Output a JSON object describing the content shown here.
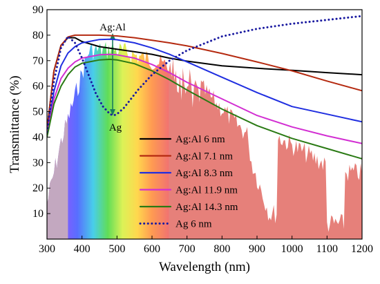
{
  "chart_data": {
    "type": "line",
    "xlabel": "Wavelength (nm)",
    "ylabel": "Transmittance (%)",
    "xlim": [
      300,
      1200
    ],
    "ylim": [
      0,
      90
    ],
    "xticks": [
      300,
      400,
      500,
      600,
      700,
      800,
      900,
      1000,
      1100,
      1200
    ],
    "yticks": [
      10,
      20,
      30,
      40,
      50,
      60,
      70,
      80,
      90
    ],
    "grid": false,
    "legend_position": "lower-center",
    "annotations": [
      {
        "text": "Ag:Al",
        "x": 490,
        "y": 82
      },
      {
        "text": "Ag",
        "x": 490,
        "y": 44
      }
    ],
    "background": "solar spectrum with visible-light rainbow band",
    "series": [
      {
        "name": "Ag:Al 6 nm",
        "color": "#000000",
        "style": "solid",
        "x": [
          300,
          320,
          340,
          360,
          380,
          400,
          450,
          500,
          550,
          600,
          650,
          700,
          800,
          900,
          1000,
          1100,
          1200
        ],
        "y": [
          43,
          66,
          76,
          79,
          79,
          77.5,
          75.5,
          74.5,
          73.5,
          72.5,
          71,
          69.8,
          68,
          67,
          66.2,
          65.3,
          64.5
        ]
      },
      {
        "name": "Ag:Al 7.1 nm",
        "color": "#b52a10",
        "style": "solid",
        "x": [
          300,
          320,
          340,
          360,
          380,
          400,
          450,
          500,
          550,
          600,
          650,
          700,
          800,
          900,
          1000,
          1100,
          1200
        ],
        "y": [
          43,
          66,
          76,
          79.3,
          80,
          80,
          80,
          79.7,
          79,
          78,
          77,
          75.8,
          72.8,
          69.5,
          66,
          62,
          58.2
        ]
      },
      {
        "name": "Ag:Al 8.3 nm",
        "color": "#1f2ee0",
        "style": "solid",
        "x": [
          300,
          320,
          340,
          360,
          380,
          400,
          450,
          480,
          500,
          550,
          600,
          650,
          700,
          800,
          900,
          1000,
          1100,
          1200
        ],
        "y": [
          41,
          58,
          68,
          73,
          75.5,
          77,
          78.3,
          78.4,
          78.2,
          77,
          75,
          72.5,
          69.5,
          63.5,
          57.5,
          52,
          49,
          46
        ]
      },
      {
        "name": "Ag:Al 11.9 nm",
        "color": "#d22ed2",
        "style": "solid",
        "x": [
          300,
          320,
          340,
          360,
          380,
          400,
          450,
          480,
          500,
          550,
          600,
          650,
          700,
          800,
          900,
          1000,
          1100,
          1200
        ],
        "y": [
          41,
          55,
          63,
          67,
          69.5,
          71,
          72.3,
          72.5,
          72.3,
          71,
          68.5,
          65.3,
          61.5,
          55,
          48.5,
          44,
          40.5,
          37.5
        ]
      },
      {
        "name": "Ag:Al 14.3 nm",
        "color": "#2a7a14",
        "style": "solid",
        "x": [
          300,
          320,
          340,
          360,
          380,
          400,
          450,
          480,
          500,
          550,
          600,
          650,
          700,
          800,
          900,
          1000,
          1100,
          1200
        ],
        "y": [
          40,
          53,
          60,
          64.5,
          67.5,
          69,
          70.3,
          70.5,
          70.3,
          68.8,
          66,
          62.5,
          58.5,
          51,
          44.5,
          39.5,
          35.5,
          31.5
        ]
      },
      {
        "name": "Ag 6 nm",
        "color": "#1a1aa0",
        "style": "dotted",
        "x": [
          300,
          320,
          340,
          360,
          380,
          400,
          420,
          440,
          460,
          480,
          490,
          500,
          520,
          540,
          560,
          600,
          650,
          700,
          800,
          900,
          1000,
          1100,
          1200
        ],
        "y": [
          42,
          62,
          75,
          79.5,
          77,
          71,
          64,
          57,
          52,
          49,
          48.5,
          49,
          51.5,
          55,
          58.5,
          64.5,
          70,
          74,
          79.5,
          82.5,
          84.5,
          86,
          87.5
        ]
      }
    ]
  }
}
